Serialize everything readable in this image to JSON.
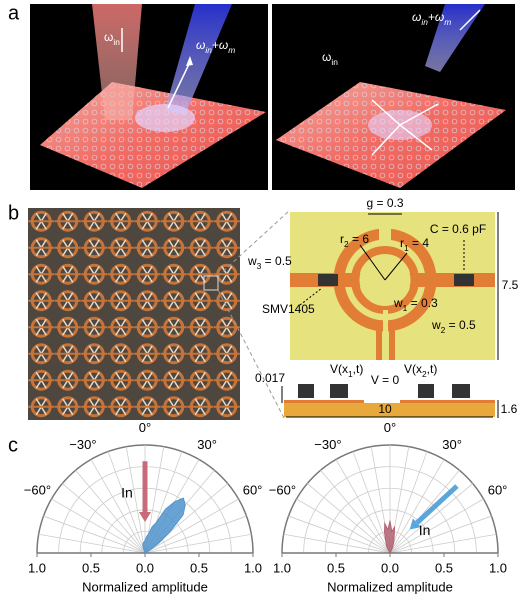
{
  "panel_a": {
    "label": "a",
    "left": {
      "omega_in": [
        "ω",
        "in"
      ],
      "omega_sum": [
        "ω",
        "in",
        "+ω",
        "m"
      ]
    },
    "right": {
      "omega_in": [
        "ω",
        "in"
      ],
      "omega_sum": [
        "ω",
        "in",
        "+ω",
        "m"
      ]
    }
  },
  "panel_b": {
    "label": "b",
    "g": "g = 0.3",
    "c": "C = 0.6 pF",
    "r2": [
      "r",
      "2",
      " = 6"
    ],
    "r1": [
      "r",
      "1",
      " = 4"
    ],
    "w3": [
      "w",
      "3",
      " = 0.5"
    ],
    "w1": [
      "w",
      "1",
      " = 0.3"
    ],
    "w2": [
      "w",
      "2",
      " = 0.5"
    ],
    "diode": "SMV1405",
    "height": "7.5",
    "v1": [
      "V(x",
      "1",
      ",t)"
    ],
    "v2": [
      "V(x",
      "2",
      ",t)"
    ],
    "v0": "V = 0",
    "thickness_metal": "0.017",
    "width": "10",
    "thickness_sub": "1.6"
  },
  "panel_c": {
    "label": "c",
    "thetaticks": [
      {
        "value": -60,
        "label": "−60°"
      },
      {
        "value": -30,
        "label": "−30°"
      },
      {
        "value": 0,
        "label": "0°"
      },
      {
        "value": 30,
        "label": "30°"
      },
      {
        "value": 60,
        "label": "60°"
      }
    ],
    "thetagrid": [
      -90,
      -80,
      -70,
      -60,
      -50,
      -40,
      -30,
      -20,
      -10,
      0,
      10,
      20,
      30,
      40,
      50,
      60,
      70,
      80,
      90
    ],
    "rgrid": [
      0.2,
      0.4,
      0.6,
      0.8,
      1.0
    ],
    "rticks": [
      {
        "value": -1,
        "label": "1.0"
      },
      {
        "value": -0.5,
        "label": "0.5"
      },
      {
        "value": 0,
        "label": "0.0"
      },
      {
        "value": 0.5,
        "label": "0.5"
      },
      {
        "value": 1,
        "label": "1.0"
      }
    ],
    "plots": [
      {
        "xlabel": "Normalized amplitude",
        "arrow_label": "In",
        "color": "#4f93cc",
        "theta": [
          -20,
          -15,
          -10,
          -5,
          0,
          5,
          10,
          15,
          20,
          25,
          30,
          35,
          40,
          45,
          50,
          55,
          60
        ],
        "r": [
          0.05,
          0.08,
          0.1,
          0.1,
          0.12,
          0.15,
          0.18,
          0.25,
          0.3,
          0.45,
          0.55,
          0.62,
          0.58,
          0.5,
          0.3,
          0.15,
          0.05
        ]
      },
      {
        "xlabel": "Normalized amplitude",
        "arrow_label": "In",
        "color": "#b0606f",
        "theta": [
          -30,
          -25,
          -20,
          -15,
          -10,
          -5,
          0,
          5,
          10,
          15,
          20,
          25,
          30
        ],
        "r": [
          0.05,
          0.08,
          0.12,
          0.2,
          0.28,
          0.22,
          0.3,
          0.2,
          0.25,
          0.15,
          0.1,
          0.06,
          0.03
        ]
      }
    ]
  }
}
